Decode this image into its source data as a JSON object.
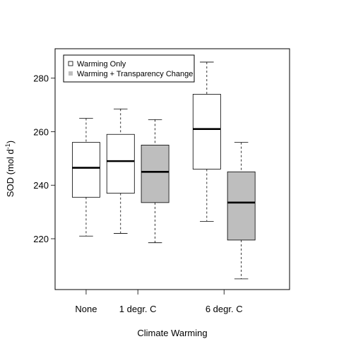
{
  "chart_data": {
    "type": "box",
    "xlabel": "Climate Warming",
    "ylabel_main": "SOD (mol d",
    "ylabel_sup": "-1",
    "ylabel_end": ")",
    "yticks": [
      220,
      240,
      260,
      280
    ],
    "ylim": [
      201,
      291
    ],
    "x_ticks": [
      {
        "pos": 1,
        "label": "None"
      },
      {
        "pos": 2.5,
        "label": "1 degr. C"
      },
      {
        "pos": 5,
        "label": "6 degr. C"
      }
    ],
    "xlim": [
      0.1,
      6.9
    ],
    "legend": {
      "placement": "top-left",
      "entries": [
        {
          "label": "Warming Only",
          "color": "#ffffff"
        },
        {
          "label": "Warming + Transparency Change",
          "color": "#bebebe"
        }
      ]
    },
    "boxes": [
      {
        "pos": 1,
        "whisker_low": 221,
        "q1": 235.5,
        "median": 246.5,
        "q3": 256,
        "whisker_high": 265,
        "color": "#ffffff"
      },
      {
        "pos": 2,
        "whisker_low": 222,
        "q1": 237,
        "median": 249,
        "q3": 259,
        "whisker_high": 268.5,
        "color": "#ffffff"
      },
      {
        "pos": 3,
        "whisker_low": 218.5,
        "q1": 233.5,
        "median": 245,
        "q3": 255,
        "whisker_high": 264.5,
        "color": "#bebebe"
      },
      {
        "pos": 4.5,
        "whisker_low": 226.5,
        "q1": 246,
        "median": 261,
        "q3": 274,
        "whisker_high": 286,
        "color": "#ffffff"
      },
      {
        "pos": 5.5,
        "whisker_low": 205,
        "q1": 219.5,
        "median": 233.5,
        "q3": 245,
        "whisker_high": 256,
        "color": "#bebebe"
      }
    ]
  }
}
